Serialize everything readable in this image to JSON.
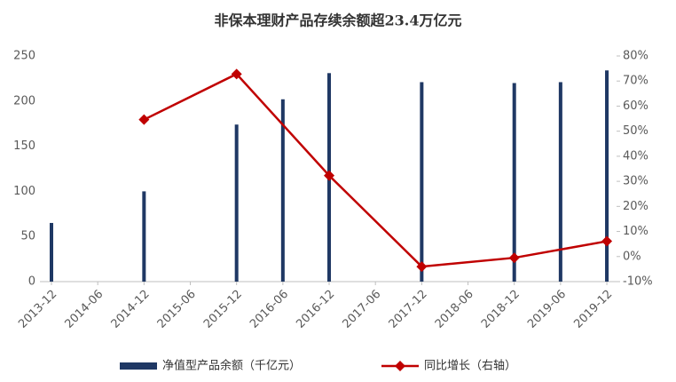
{
  "chart_data": {
    "type": "bar-line",
    "title": "非保本理财产品存续余额超23.4万亿元",
    "categories": [
      "2013-12",
      "2014-06",
      "2014-12",
      "2015-06",
      "2015-12",
      "2016-06",
      "2016-12",
      "2017-06",
      "2017-12",
      "2018-06",
      "2018-12",
      "2019-06",
      "2019-12"
    ],
    "series": [
      {
        "name": "净值型产品余额（千亿元）",
        "color": "#1f3864",
        "type": "bar",
        "values": [
          65,
          null,
          100,
          null,
          174,
          202,
          231,
          null,
          221,
          null,
          220,
          221,
          234
        ]
      },
      {
        "name": "同比增长（右轴）",
        "color": "#c00000",
        "type": "line",
        "axis": "y2",
        "x": [
          "2014-12",
          "2015-12",
          "2016-12",
          "2017-12",
          "2018-12",
          "2019-12"
        ],
        "values": [
          54.6,
          72.8,
          32.3,
          -4.0,
          -0.5,
          6.1
        ]
      }
    ],
    "ylim": [
      0,
      250
    ],
    "yticks": [
      0,
      50,
      100,
      150,
      200,
      250
    ],
    "y2lim": [
      -10,
      80
    ],
    "y2ticks": [
      {
        "value": -10,
        "label": "-10%"
      },
      {
        "value": 0,
        "label": "0%"
      },
      {
        "value": 10,
        "label": "10%"
      },
      {
        "value": 20,
        "label": "20%"
      },
      {
        "value": 30,
        "label": "30%"
      },
      {
        "value": 40,
        "label": "40%"
      },
      {
        "value": 50,
        "label": "50%"
      },
      {
        "value": 60,
        "label": "60%"
      },
      {
        "value": 70,
        "label": "70%"
      },
      {
        "value": 80,
        "label": "80%"
      }
    ],
    "legend": "bottom"
  }
}
